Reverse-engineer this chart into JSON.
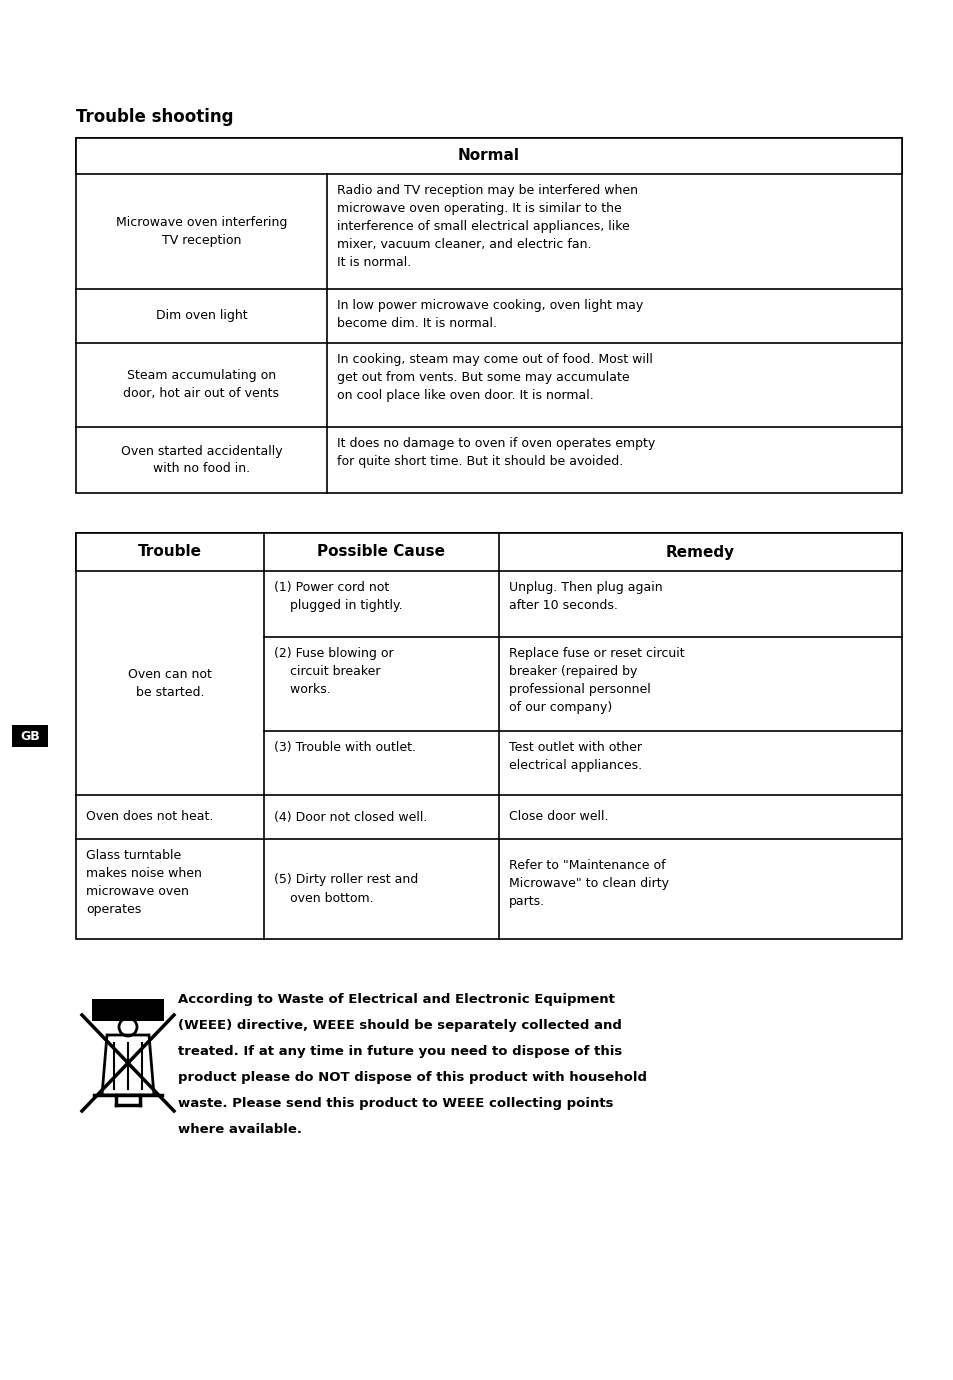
{
  "title": "Trouble shooting",
  "bg_color": "#ffffff",
  "normal_header": "Normal",
  "normal_rows": [
    {
      "col1": "Microwave oven interfering\nTV reception",
      "col2": "Radio and TV reception may be interfered when\nmicrowave oven operating. It is similar to the\ninterference of small electrical appliances, like\nmixer, vacuum cleaner, and electric fan.\nIt is normal."
    },
    {
      "col1": "Dim oven light",
      "col2": "In low power microwave cooking, oven light may\nbecome dim. It is normal."
    },
    {
      "col1": "Steam accumulating on\ndoor, hot air out of vents",
      "col2": "In cooking, steam may come out of food. Most will\nget out from vents. But some may accumulate\non cool place like oven door. It is normal."
    },
    {
      "col1": "Oven started accidentally\nwith no food in.",
      "col2": "It does no damage to oven if oven operates empty\nfor quite short time. But it should be avoided."
    }
  ],
  "trouble_headers": [
    "Trouble",
    "Possible Cause",
    "Remedy"
  ],
  "trouble_rows": [
    {
      "trouble": "Oven can not\nbe started.",
      "sub_rows": [
        {
          "cause": "(1) Power cord not\n    plugged in tightly.",
          "remedy": "Unplug. Then plug again\nafter 10 seconds."
        },
        {
          "cause": "(2) Fuse blowing or\n    circuit breaker\n    works.",
          "remedy": "Replace fuse or reset circuit\nbreaker (repaired by\nprofessional personnel\nof our company)"
        },
        {
          "cause": "(3) Trouble with outlet.",
          "remedy": "Test outlet with other\nelectrical appliances."
        }
      ]
    },
    {
      "trouble": "Oven does not heat.",
      "sub_rows": [
        {
          "cause": "(4) Door not closed well.",
          "remedy": "Close door well."
        }
      ]
    },
    {
      "trouble": "Glass turntable\nmakes noise when\nmicrowave oven\noperates",
      "sub_rows": [
        {
          "cause": "(5) Dirty roller rest and\n    oven bottom.",
          "remedy": "Refer to \"Maintenance of\nMicrowave\" to clean dirty\nparts."
        }
      ]
    }
  ],
  "weee_lines": [
    "According to Waste of Electrical and Electronic Equipment",
    "(WEEE) directive, WEEE should be separately collected and",
    "treated. If at any time in future you need to dispose of this",
    "product please do NOT dispose of this product with household",
    "waste. Please send this product to WEEE collecting points",
    "where available."
  ],
  "gb_label": "GB",
  "font_size_body": 9.0,
  "font_size_header": 11.0,
  "font_size_title": 12.0,
  "font_size_weee": 9.5
}
